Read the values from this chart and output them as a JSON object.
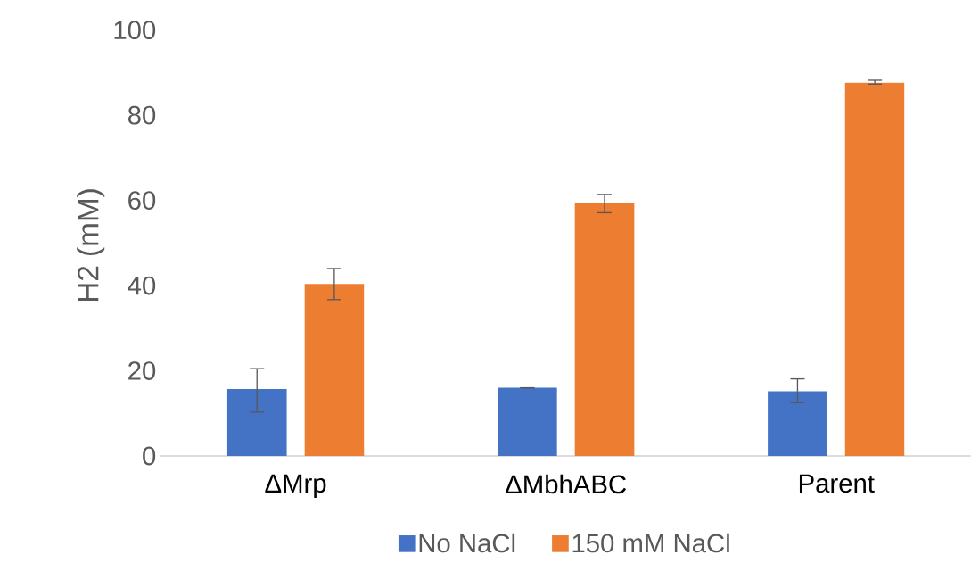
{
  "chart_data": {
    "type": "bar",
    "ylabel": "H2 (mM)",
    "categories": [
      "ΔMrp",
      "ΔMbhABC",
      "Parent"
    ],
    "series": [
      {
        "name": "No NaCl",
        "color": "#4472c4",
        "values": [
          15.7,
          16.0,
          15.2
        ],
        "errors": [
          [
            10.3,
            20.5
          ],
          [
            16.0,
            16.0
          ],
          [
            12.5,
            18.1
          ]
        ]
      },
      {
        "name": "150 mM NaCl",
        "color": "#ed7d31",
        "values": [
          40.4,
          59.4,
          87.6
        ],
        "errors": [
          [
            36.7,
            44.0
          ],
          [
            57.1,
            61.4
          ],
          [
            87.3,
            88.2
          ]
        ]
      }
    ],
    "ylim": [
      0,
      100
    ],
    "yticks": [
      0,
      20,
      40,
      60,
      80,
      100
    ],
    "legend": "bottom"
  }
}
